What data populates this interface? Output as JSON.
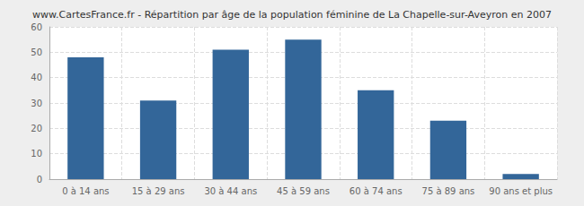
{
  "chart_data": {
    "type": "bar",
    "title": "www.CartesFrance.fr - Répartition par âge de la population féminine de La Chapelle-sur-Aveyron en 2007",
    "categories": [
      "0 à 14 ans",
      "15 à 29 ans",
      "30 à 44 ans",
      "45 à 59 ans",
      "60 à 74 ans",
      "75 à 89 ans",
      "90 ans et plus"
    ],
    "values": [
      48,
      31,
      51,
      55,
      35,
      23,
      2
    ],
    "color": "#336699",
    "ylim": [
      0,
      60
    ],
    "yticks": [
      0,
      10,
      20,
      30,
      40,
      50,
      60
    ],
    "grid": true
  }
}
